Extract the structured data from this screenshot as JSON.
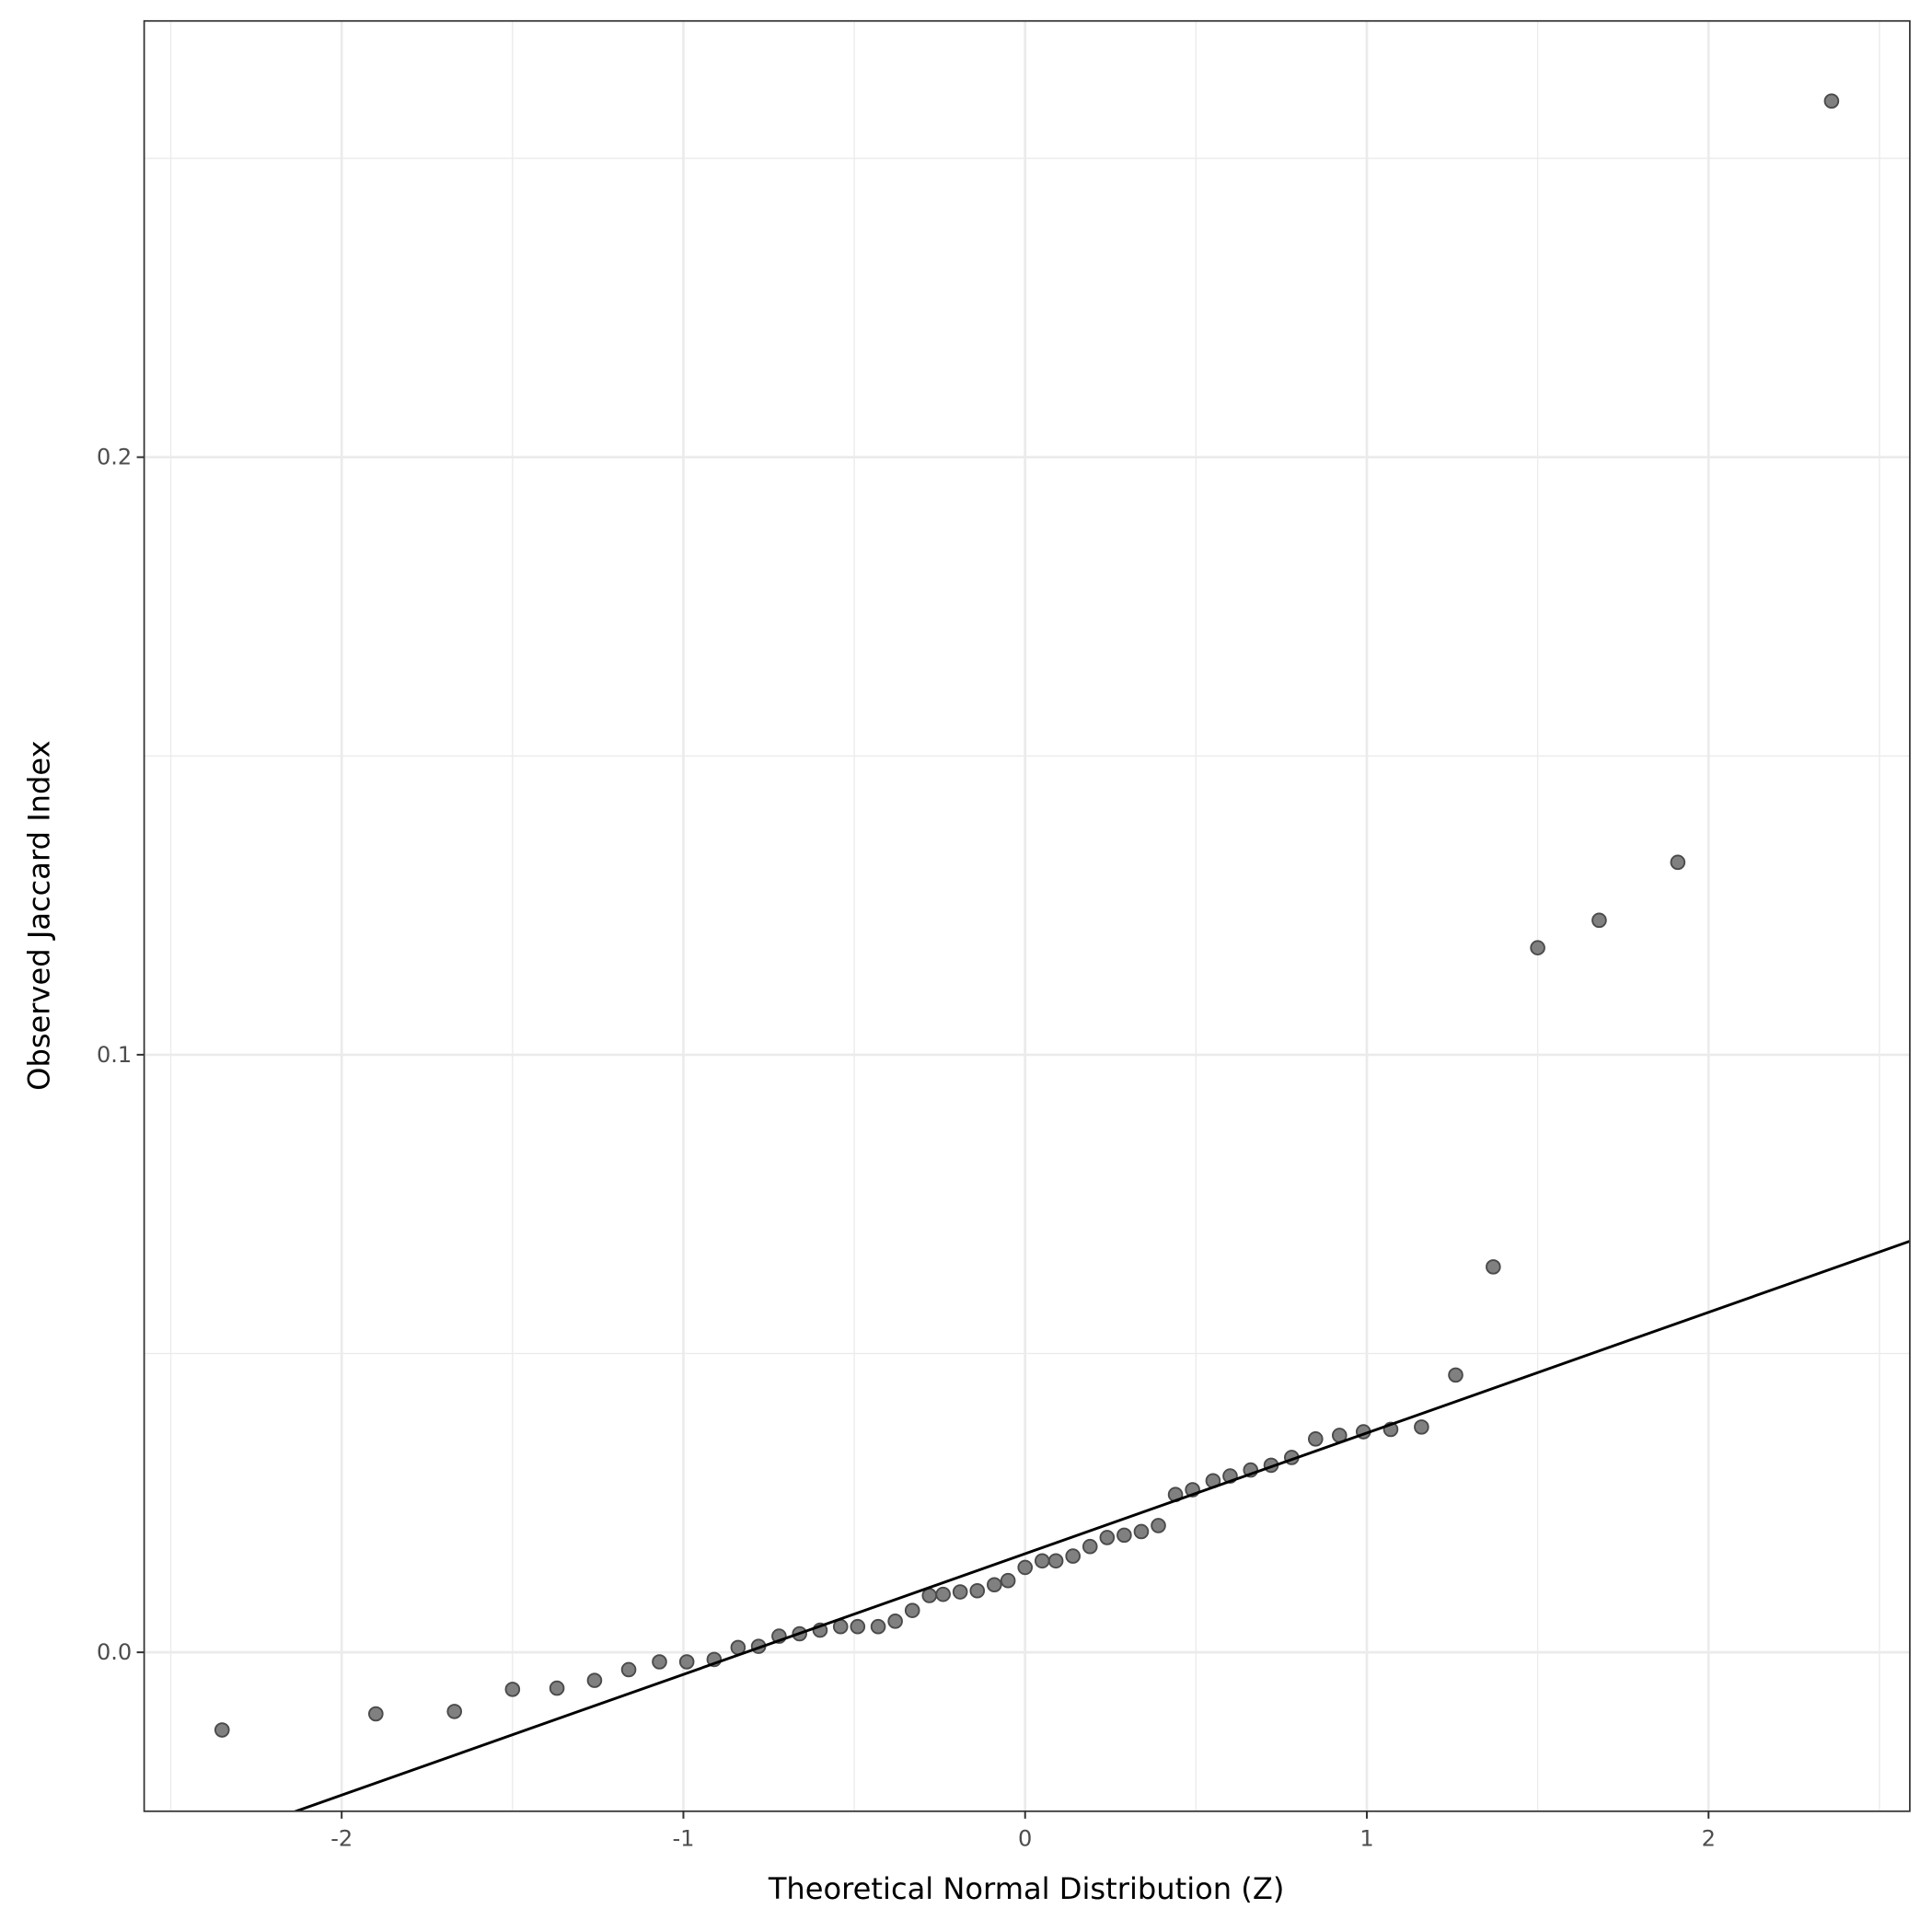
{
  "chart_data": {
    "type": "scatter",
    "title": "",
    "xlabel": "Theoretical Normal Distribution (Z)",
    "ylabel": "Observed Jaccard Index",
    "xlim": [
      -2.578,
      2.589
    ],
    "ylim": [
      -0.0266,
      0.273
    ],
    "xticks": [
      -2,
      -1,
      0,
      1,
      2
    ],
    "xtick_labels": [
      "-2",
      "-1",
      "0",
      "1",
      "2"
    ],
    "yticks": [
      0.0,
      0.1,
      0.2
    ],
    "ytick_labels": [
      "0.0",
      "0.1",
      "0.2"
    ],
    "grid": true,
    "reference_line": {
      "slope": 0.0202,
      "intercept": 0.0165
    },
    "point_color": "#808080",
    "points": [
      [
        -2.35,
        -0.013
      ],
      [
        -1.9,
        -0.0103
      ],
      [
        -1.67,
        -0.0099
      ],
      [
        -1.5,
        -0.0062
      ],
      [
        -1.37,
        -0.006
      ],
      [
        -1.26,
        -0.0047
      ],
      [
        -1.16,
        -0.0029
      ],
      [
        -1.07,
        -0.0016
      ],
      [
        -0.99,
        -0.0016
      ],
      [
        -0.91,
        -0.0012
      ],
      [
        -0.84,
        0.0008
      ],
      [
        -0.78,
        0.001
      ],
      [
        -0.72,
        0.0027
      ],
      [
        -0.66,
        0.0031
      ],
      [
        -0.6,
        0.0037
      ],
      [
        -0.54,
        0.0043
      ],
      [
        -0.49,
        0.0043
      ],
      [
        -0.43,
        0.0043
      ],
      [
        -0.38,
        0.0052
      ],
      [
        -0.33,
        0.007
      ],
      [
        -0.28,
        0.0095
      ],
      [
        -0.24,
        0.0097
      ],
      [
        -0.19,
        0.0101
      ],
      [
        -0.14,
        0.0103
      ],
      [
        -0.09,
        0.0113
      ],
      [
        -0.05,
        0.012
      ],
      [
        0.0,
        0.0142
      ],
      [
        0.05,
        0.0153
      ],
      [
        0.09,
        0.0153
      ],
      [
        0.14,
        0.0161
      ],
      [
        0.19,
        0.0177
      ],
      [
        0.24,
        0.0192
      ],
      [
        0.29,
        0.0196
      ],
      [
        0.34,
        0.0202
      ],
      [
        0.39,
        0.0212
      ],
      [
        0.44,
        0.0264
      ],
      [
        0.49,
        0.0272
      ],
      [
        0.55,
        0.0287
      ],
      [
        0.6,
        0.0295
      ],
      [
        0.66,
        0.0305
      ],
      [
        0.72,
        0.0313
      ],
      [
        0.78,
        0.0326
      ],
      [
        0.85,
        0.0357
      ],
      [
        0.92,
        0.0363
      ],
      [
        0.99,
        0.0369
      ],
      [
        1.07,
        0.0373
      ],
      [
        1.16,
        0.0377
      ],
      [
        1.26,
        0.0464
      ],
      [
        1.37,
        0.0645
      ],
      [
        1.5,
        0.1179
      ],
      [
        1.68,
        0.1225
      ],
      [
        1.91,
        0.1322
      ],
      [
        2.36,
        0.2596
      ]
    ]
  }
}
